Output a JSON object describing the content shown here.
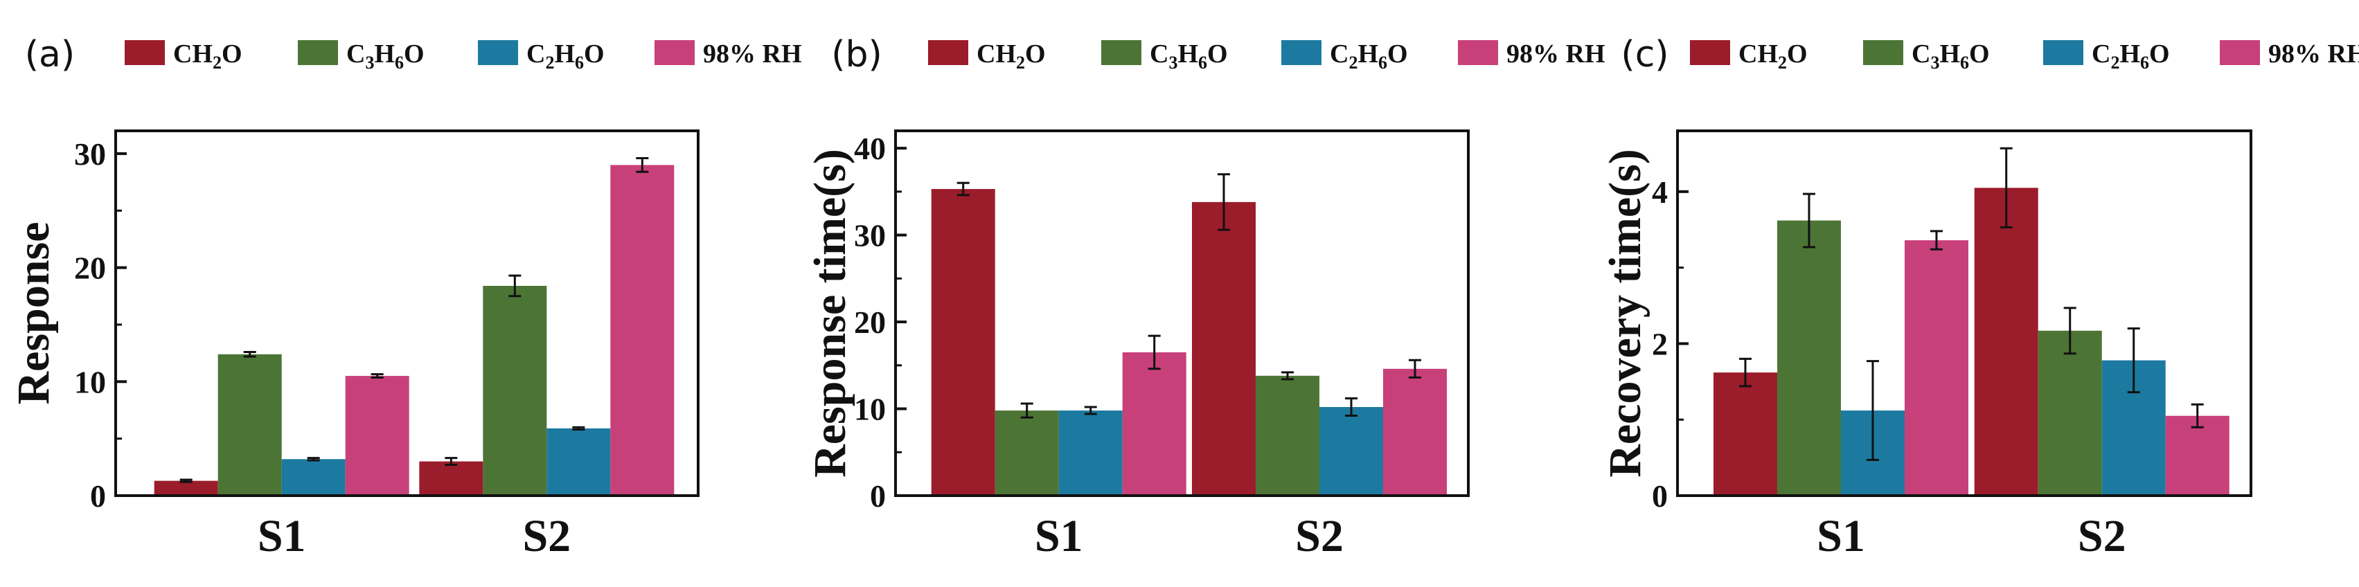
{
  "colors": {
    "CH2O": "#9b1c2a",
    "C3H6O": "#4c7535",
    "C2H6O": "#1c7aa0",
    "RH": "#c8407a"
  },
  "legend": [
    {
      "key": "CH2O",
      "parts": [
        [
          "CH",
          false
        ],
        [
          "2",
          true
        ],
        [
          "O",
          false
        ]
      ]
    },
    {
      "key": "C3H6O",
      "parts": [
        [
          "C",
          false
        ],
        [
          "3",
          true
        ],
        [
          "H",
          false
        ],
        [
          "6",
          true
        ],
        [
          "O",
          false
        ]
      ]
    },
    {
      "key": "C2H6O",
      "parts": [
        [
          "C",
          false
        ],
        [
          "2",
          true
        ],
        [
          "H",
          false
        ],
        [
          "6",
          true
        ],
        [
          "O",
          false
        ]
      ]
    },
    {
      "key": "RH",
      "parts": [
        [
          "98% RH",
          false
        ]
      ]
    }
  ],
  "chart_data": [
    {
      "type": "bar",
      "panel": "(a)",
      "ylabel": "Response",
      "categories": [
        "S1",
        "S2"
      ],
      "ylim": [
        0,
        32
      ],
      "yticks": [
        0,
        10,
        20,
        30
      ],
      "series": [
        {
          "name": "CH2O",
          "values": [
            1.3,
            3.0
          ],
          "errors": [
            0.1,
            0.3
          ]
        },
        {
          "name": "C3H6O",
          "values": [
            12.4,
            18.4
          ],
          "errors": [
            0.2,
            0.9
          ]
        },
        {
          "name": "C2H6O",
          "values": [
            3.2,
            5.9
          ],
          "errors": [
            0.1,
            0.1
          ]
        },
        {
          "name": "98% RH",
          "values": [
            10.5,
            29.0
          ],
          "errors": [
            0.15,
            0.6
          ]
        }
      ]
    },
    {
      "type": "bar",
      "panel": "(b)",
      "ylabel": "Response time(s)",
      "categories": [
        "S1",
        "S2"
      ],
      "ylim": [
        0,
        42
      ],
      "yticks": [
        0,
        10,
        20,
        30,
        40
      ],
      "series": [
        {
          "name": "CH2O",
          "values": [
            35.3,
            33.8
          ],
          "errors": [
            0.7,
            3.2
          ]
        },
        {
          "name": "C3H6O",
          "values": [
            9.8,
            13.8
          ],
          "errors": [
            0.8,
            0.4
          ]
        },
        {
          "name": "C2H6O",
          "values": [
            9.8,
            10.2
          ],
          "errors": [
            0.4,
            1.0
          ]
        },
        {
          "name": "98% RH",
          "values": [
            16.5,
            14.6
          ],
          "errors": [
            1.9,
            1.0
          ]
        }
      ]
    },
    {
      "type": "bar",
      "panel": "(c)",
      "ylabel": "Recovery time(s)",
      "categories": [
        "S1",
        "S2"
      ],
      "ylim": [
        0,
        4.8
      ],
      "yticks": [
        0,
        2,
        4
      ],
      "series": [
        {
          "name": "CH2O",
          "values": [
            1.62,
            4.05
          ],
          "errors": [
            0.18,
            0.52
          ]
        },
        {
          "name": "C3H6O",
          "values": [
            3.62,
            2.17
          ],
          "errors": [
            0.35,
            0.3
          ]
        },
        {
          "name": "C2H6O",
          "values": [
            1.12,
            1.78
          ],
          "errors": [
            0.65,
            0.42
          ]
        },
        {
          "name": "98% RH",
          "values": [
            3.36,
            1.05
          ],
          "errors": [
            0.12,
            0.15
          ]
        }
      ]
    }
  ]
}
